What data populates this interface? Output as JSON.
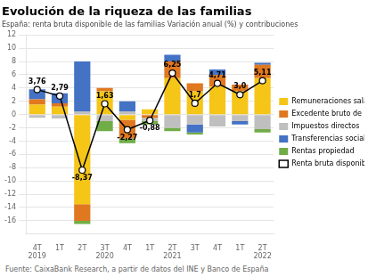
{
  "chart_data": {
    "type": "bar",
    "stacked": true,
    "title": "Evolución de la riqueza de las familias",
    "subtitle": "España: renta bruta disponible de las familias Variación anual (%) y contribuciones",
    "footnote": "Fuente: CaixaBank Research, a partir de datos del INE y Banco de España",
    "categories": [
      "4T\n2019",
      "1T",
      "2T",
      "3T\n2020",
      "4T",
      "1T",
      "2T\n2021",
      "3T",
      "4T",
      "1T",
      "2T\n2022"
    ],
    "series": [
      {
        "name": "Remuneraciones salariales",
        "color": "#f5c518",
        "values": [
          1.5,
          1.2,
          -13.5,
          3.5,
          -0.8,
          0.8,
          5.5,
          3.5,
          4.2,
          3.5,
          5.5
        ]
      },
      {
        "name": "Excedente bruto de explota",
        "color": "#e07820",
        "values": [
          0.8,
          0.5,
          -2.5,
          0.5,
          -2.8,
          -0.5,
          2.5,
          1.2,
          1.8,
          1.0,
          2.0
        ]
      },
      {
        "name": "Impuestos directos",
        "color": "#c0bfbf",
        "values": [
          -0.5,
          -0.6,
          0.5,
          -1.0,
          0.5,
          -0.5,
          -2.0,
          -1.5,
          -1.8,
          -1.0,
          -2.2
        ]
      },
      {
        "name": "Transferencias sociales neta",
        "color": "#4472c4",
        "values": [
          1.5,
          1.5,
          7.5,
          0.0,
          1.5,
          0.0,
          1.0,
          -1.2,
          0.8,
          -0.5,
          0.3
        ]
      },
      {
        "name": "Rentas propiedad",
        "color": "#70ad47",
        "values": [
          0.0,
          0.0,
          -0.5,
          -1.5,
          -0.7,
          -0.5,
          -0.5,
          -0.3,
          0.0,
          0.0,
          -0.5
        ]
      },
      {
        "name": "Renta bruta disponible",
        "type": "line",
        "color": "#000000",
        "marker": "circle",
        "line_style": "solid",
        "data_labels": true,
        "values": [
          3.76,
          2.79,
          -8.37,
          1.63,
          -2.27,
          -0.88,
          6.25,
          1.7,
          4.71,
          3.0,
          5.11
        ],
        "value_labels": [
          "3,76",
          "2,79",
          "-8,37",
          "1,63",
          "-2,27",
          "-0,88",
          "6,25",
          "1,7",
          "4,71",
          "3,0",
          "5,11"
        ]
      }
    ],
    "ylim": [
      -18,
      12
    ],
    "yticks": [
      -16,
      -14,
      -12,
      -10,
      -8,
      -6,
      -4,
      -2,
      0,
      2,
      4,
      6,
      8,
      10,
      12
    ],
    "grid": true,
    "legend": "right"
  }
}
